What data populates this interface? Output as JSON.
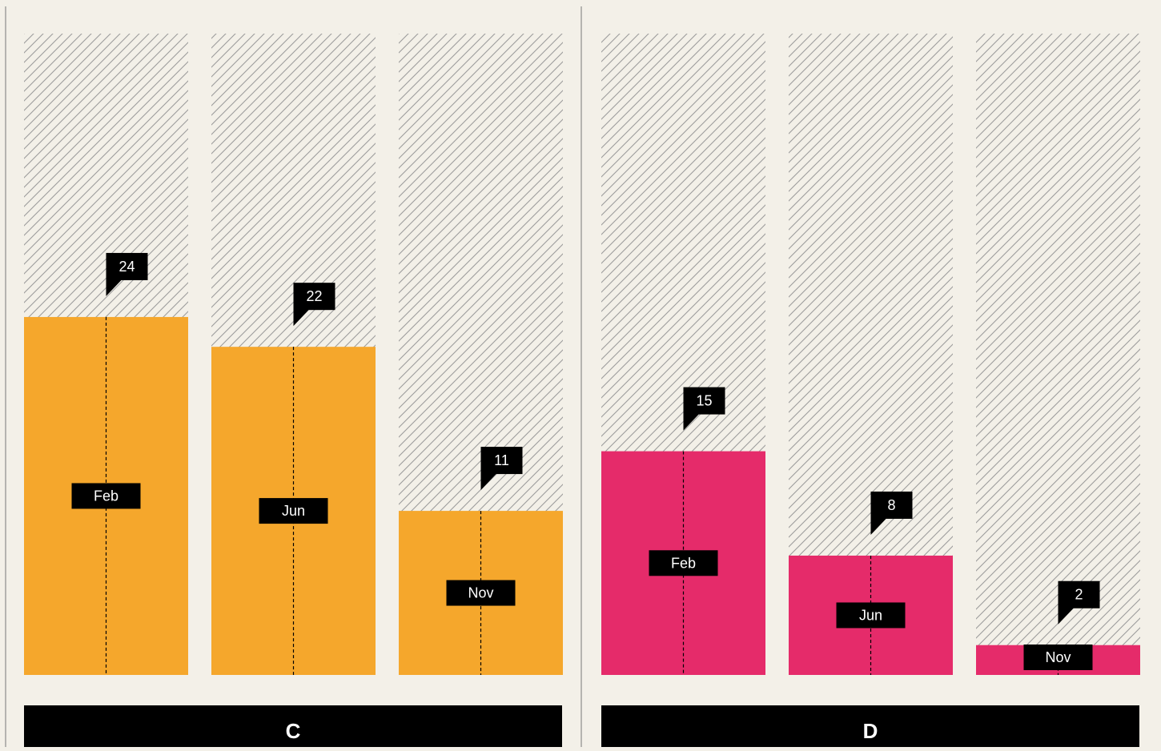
{
  "chart_data": {
    "type": "bar",
    "title": "",
    "xlabel": "",
    "ylabel": "",
    "ylim": [
      0,
      43
    ],
    "grid": false,
    "categories": [
      "Feb",
      "Jun",
      "Nov"
    ],
    "panels": [
      {
        "name": "C",
        "color": "#f5a72c",
        "values": [
          24,
          22,
          11
        ],
        "value_labels": [
          "24",
          "22",
          "11"
        ]
      },
      {
        "name": "D",
        "color": "#e52b6a",
        "values": [
          15,
          8,
          2
        ],
        "value_labels": [
          "15",
          "8",
          "2"
        ]
      }
    ]
  },
  "colors": {
    "background": "#f3f0e8",
    "hatch": "#9c9c9c",
    "label_box": "#000000",
    "label_text": "#ffffff"
  }
}
